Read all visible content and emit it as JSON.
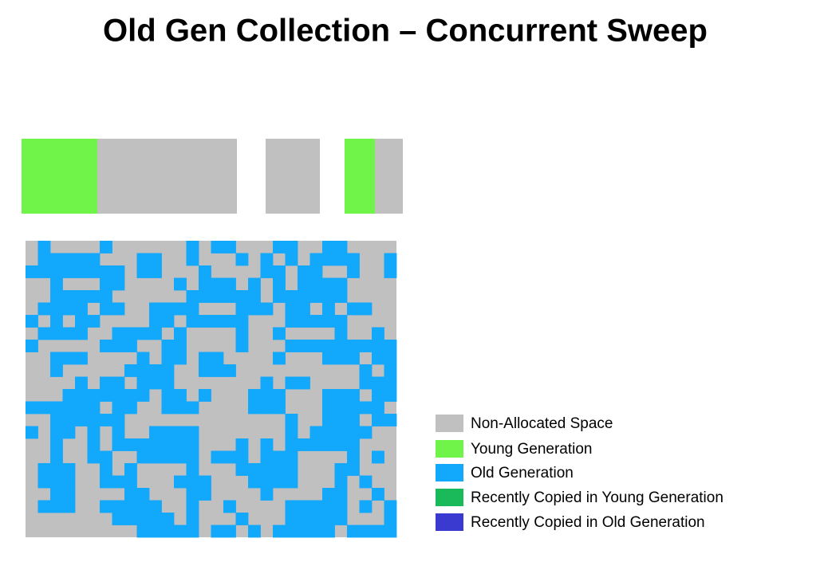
{
  "title": "Old Gen Collection – Concurrent Sweep",
  "legend": [
    {
      "label": "Non-Allocated Space"
    },
    {
      "label": "Young Generation"
    },
    {
      "label": "Old Generation"
    },
    {
      "label": "Recently Copied in Young Generation"
    },
    {
      "label": "Recently Copied in Old Generation"
    }
  ]
}
